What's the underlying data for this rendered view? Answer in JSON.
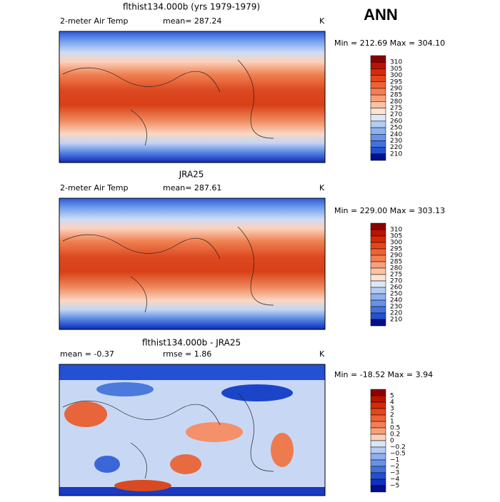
{
  "header": {
    "season": "ANN"
  },
  "panels": [
    {
      "title": "flthist134.000b (yrs 1979-1979)",
      "left": "2-meter Air Temp",
      "center": "mean= 287.24",
      "right": "K",
      "minmax": "Min = 212.69 Max = 304.10",
      "colorbar": {
        "labels": [
          "310",
          "305",
          "300",
          "295",
          "290",
          "285",
          "280",
          "275",
          "270",
          "260",
          "250",
          "240",
          "230",
          "220",
          "210"
        ],
        "colors": [
          "#8b0000",
          "#b81400",
          "#d42a08",
          "#e4461c",
          "#ef6234",
          "#f47f52",
          "#f8a07a",
          "#fbc2a4",
          "#fde4d2",
          "#dce8f8",
          "#b4cbf2",
          "#8eb0ec",
          "#6992e4",
          "#4472dc",
          "#2350d0",
          "#00108c"
        ]
      }
    },
    {
      "title": "JRA25",
      "left": "2-meter Air Temp",
      "center": "mean= 287.61",
      "right": "K",
      "minmax": "Min = 229.00 Max = 303.13",
      "colorbar": {
        "labels": [
          "310",
          "305",
          "300",
          "295",
          "290",
          "285",
          "280",
          "275",
          "270",
          "260",
          "250",
          "240",
          "230",
          "220",
          "210"
        ],
        "colors": [
          "#8b0000",
          "#b81400",
          "#d42a08",
          "#e4461c",
          "#ef6234",
          "#f47f52",
          "#f8a07a",
          "#fbc2a4",
          "#fde4d2",
          "#dce8f8",
          "#b4cbf2",
          "#8eb0ec",
          "#6992e4",
          "#4472dc",
          "#2350d0",
          "#00108c"
        ]
      }
    },
    {
      "title": "flthist134.000b - JRA25",
      "left": "mean =  -0.37",
      "center": "rmse =   1.86",
      "right": "K",
      "minmax": "Min = -18.52 Max =    3.94",
      "colorbar": {
        "labels": [
          "5",
          "4",
          "3",
          "2",
          "1",
          "0.5",
          "0.2",
          "0",
          "−0.2",
          "−0.5",
          "−1",
          "−2",
          "−3",
          "−4",
          "−5"
        ],
        "colors": [
          "#8b0000",
          "#b81400",
          "#d42a08",
          "#e4461c",
          "#ef6234",
          "#f47f52",
          "#f8a07a",
          "#fbd0b8",
          "#d8e6f8",
          "#b4cbf2",
          "#8eb0ec",
          "#6992e4",
          "#4472dc",
          "#2350d0",
          "#1030c0",
          "#00108c"
        ]
      }
    }
  ]
}
